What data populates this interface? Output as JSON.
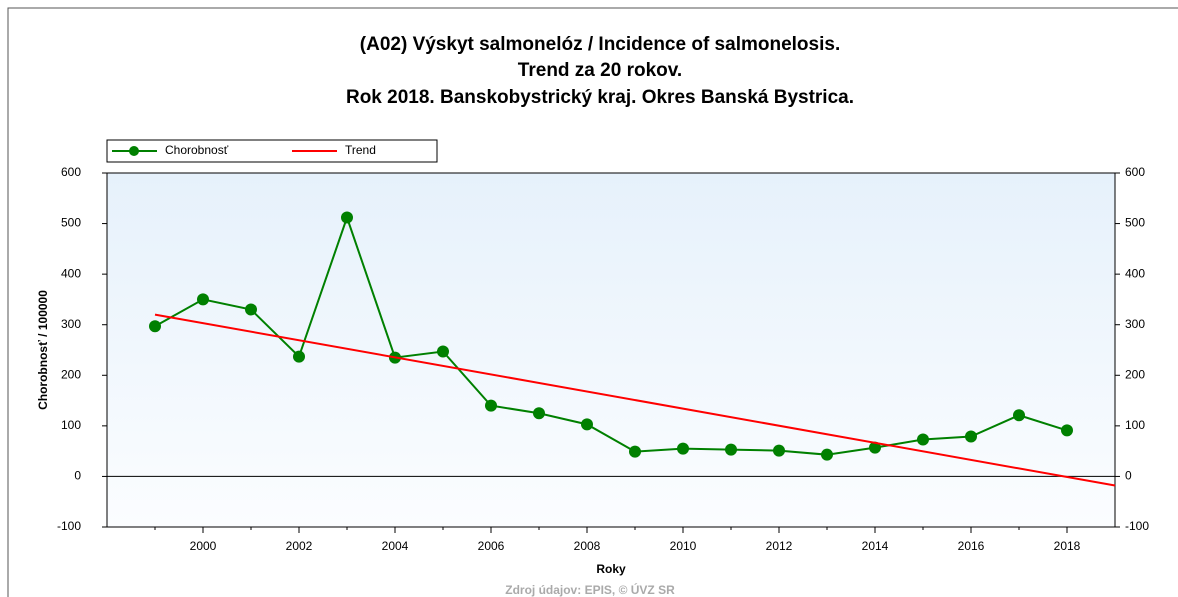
{
  "chart_data": {
    "type": "line",
    "title": [
      "(A02) Výskyt salmonelóz / Incidence of salmonelosis.",
      "Trend za 20 rokov.",
      "Rok 2018. Banskobystrický kraj. Okres Banská Bystrica."
    ],
    "x_label": "Roky",
    "y_label": "Chorobnosť / 100000",
    "source": "Zdroj údajov: EPIS, © ÚVZ SR",
    "xlim": [
      1998,
      2019
    ],
    "xticks": [
      2000,
      2002,
      2004,
      2006,
      2008,
      2010,
      2012,
      2014,
      2016,
      2018
    ],
    "ylim": [
      -100,
      600
    ],
    "yticks": [
      -100,
      0,
      100,
      200,
      300,
      400,
      500,
      600
    ],
    "y2lim": [
      -100,
      600
    ],
    "y2ticks": [
      -100,
      0,
      100,
      200,
      300,
      400,
      500,
      600
    ],
    "series": [
      {
        "name": "Chorobnosť",
        "color": "#008000",
        "marker": true,
        "x": [
          1999,
          2000,
          2001,
          2002,
          2003,
          2004,
          2005,
          2006,
          2007,
          2008,
          2009,
          2010,
          2011,
          2012,
          2013,
          2014,
          2015,
          2016,
          2017,
          2018
        ],
        "values": [
          297,
          350,
          330,
          237,
          512,
          235,
          247,
          140,
          125,
          103,
          49,
          55,
          53,
          51,
          43,
          57,
          73,
          79,
          121,
          91
        ]
      },
      {
        "name": "Trend",
        "color": "#ff0000",
        "marker": false,
        "x": [
          1999,
          2019
        ],
        "values": [
          320,
          -18
        ]
      }
    ]
  }
}
